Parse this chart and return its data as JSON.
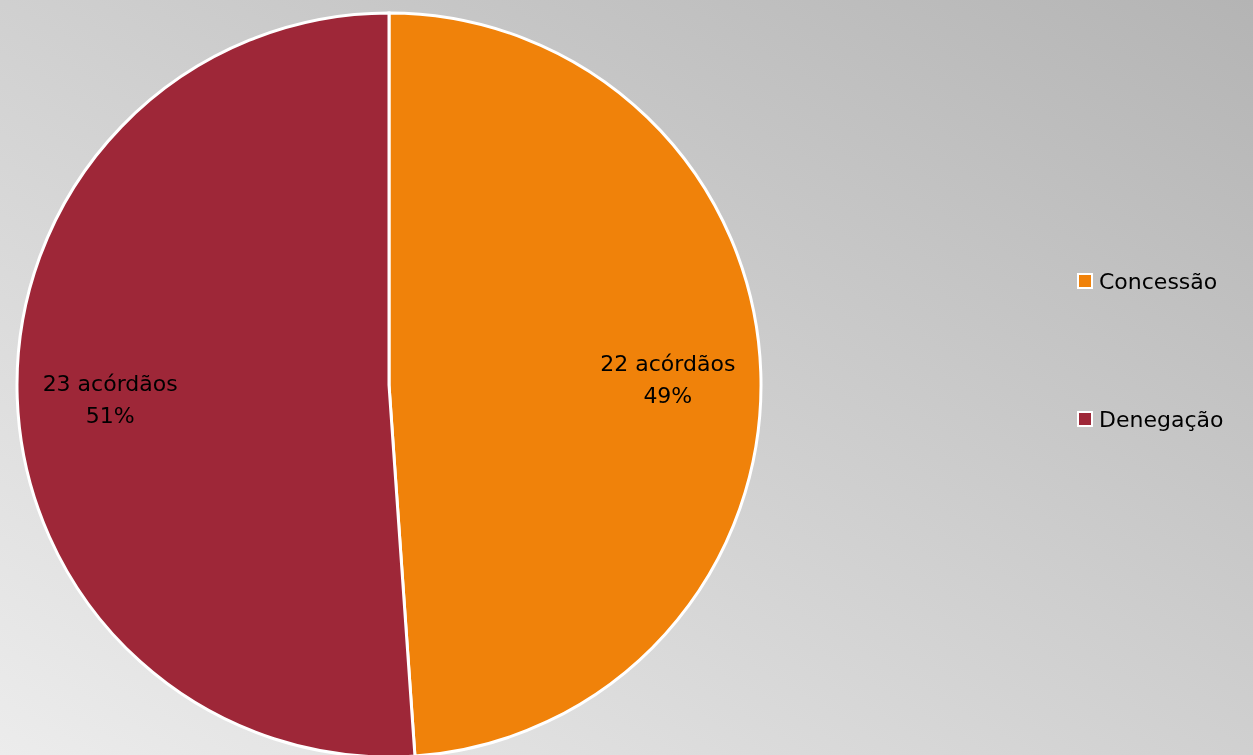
{
  "chart_data": {
    "type": "pie",
    "categories": [
      "Concessão",
      "Denegação"
    ],
    "values": [
      22,
      23
    ],
    "colors": [
      "#f0820a",
      "#9e2738"
    ],
    "value_labels": [
      "22 acórdãos\n49%",
      "23 acórdãos\n51%"
    ],
    "legend": "right"
  }
}
